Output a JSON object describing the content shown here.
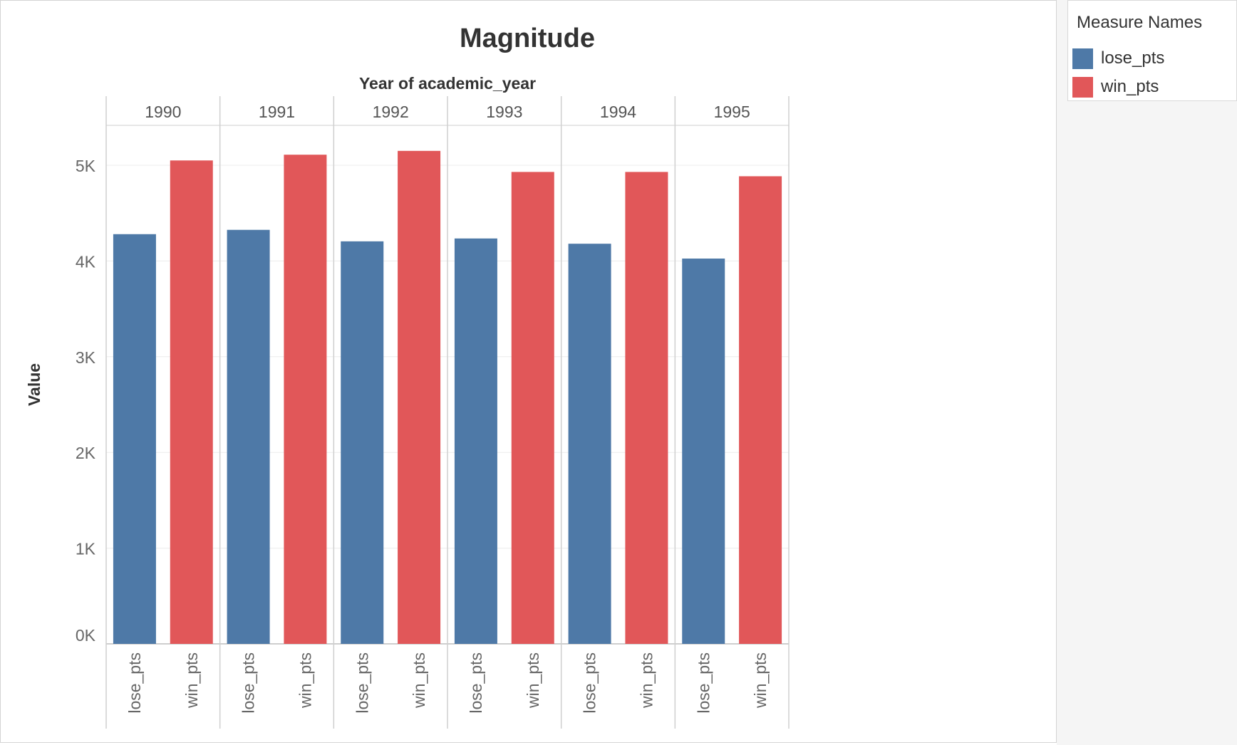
{
  "chart_data": {
    "type": "bar",
    "title": "Magnitude",
    "column_header_title": "Year of academic_year",
    "ylabel": "Value",
    "ylim": [
      0,
      5500
    ],
    "y_ticks": [
      0,
      1000,
      2000,
      3000,
      4000,
      5000
    ],
    "y_tick_labels": [
      "0K",
      "1K",
      "2K",
      "3K",
      "4K",
      "5K"
    ],
    "grid": true,
    "legend_position": "top-right",
    "legend_title": "Measure Names",
    "categories": [
      "1990",
      "1991",
      "1992",
      "1993",
      "1994",
      "1995"
    ],
    "sub_categories": [
      "lose_pts",
      "win_pts"
    ],
    "series": [
      {
        "name": "lose_pts",
        "color": "#4e79a7",
        "values": [
          4280,
          4325,
          4205,
          4235,
          4180,
          4025
        ]
      },
      {
        "name": "win_pts",
        "color": "#e15759",
        "values": [
          5050,
          5110,
          5150,
          4930,
          4930,
          4885
        ]
      }
    ]
  }
}
